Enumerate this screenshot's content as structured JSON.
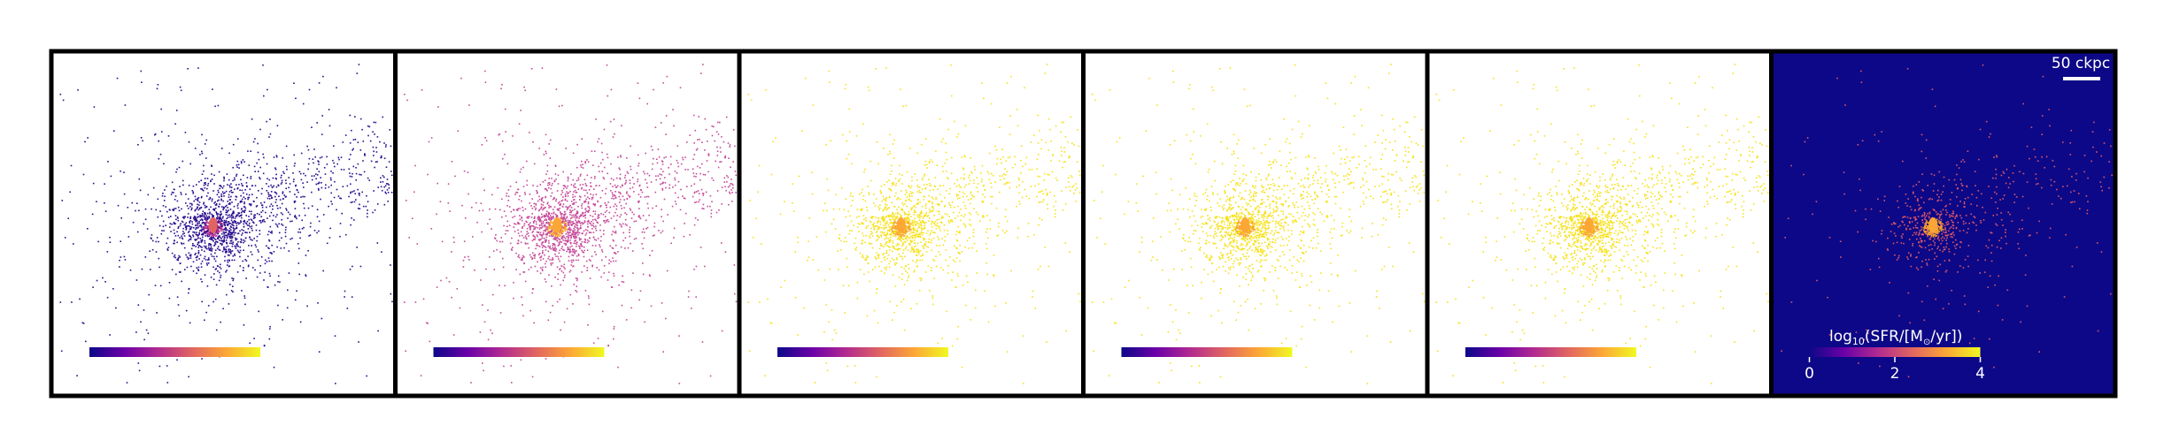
{
  "chart_data": {
    "type": "scatter",
    "description_panels": 6,
    "panels": [
      {
        "background": "#ffffff",
        "point_color": "#2a0e8f",
        "point_density": 1.0,
        "colorbar": true
      },
      {
        "background": "#ffffff",
        "point_color": "#c64b9a",
        "point_density": 1.0,
        "colorbar": true
      },
      {
        "background": "#ffffff",
        "point_color": "#f7e11a",
        "point_density": 0.8,
        "colorbar": true
      },
      {
        "background": "#ffffff",
        "point_color": "#f7e11a",
        "point_density": 0.8,
        "colorbar": true
      },
      {
        "background": "#ffffff",
        "point_color": "#f7e11a",
        "point_density": 0.8,
        "colorbar": true
      },
      {
        "background": "#0d0887",
        "point_color": "#d8576b",
        "point_density": 0.35,
        "colorbar": true
      }
    ],
    "colorbar": {
      "label_prefix": "log",
      "label_sub": "10",
      "label_suffix": "(SFR/[M",
      "label_sun": "⊙",
      "label_end": "/yr])",
      "ticks": [
        "0",
        "2",
        "4"
      ],
      "range": [
        0,
        4
      ],
      "colormap": [
        "#0d0887",
        "#6a00a8",
        "#b12a90",
        "#e16462",
        "#fca636",
        "#f0f921"
      ]
    },
    "scalebar": {
      "label": "50 ckpc",
      "color": "#ffffff"
    }
  }
}
